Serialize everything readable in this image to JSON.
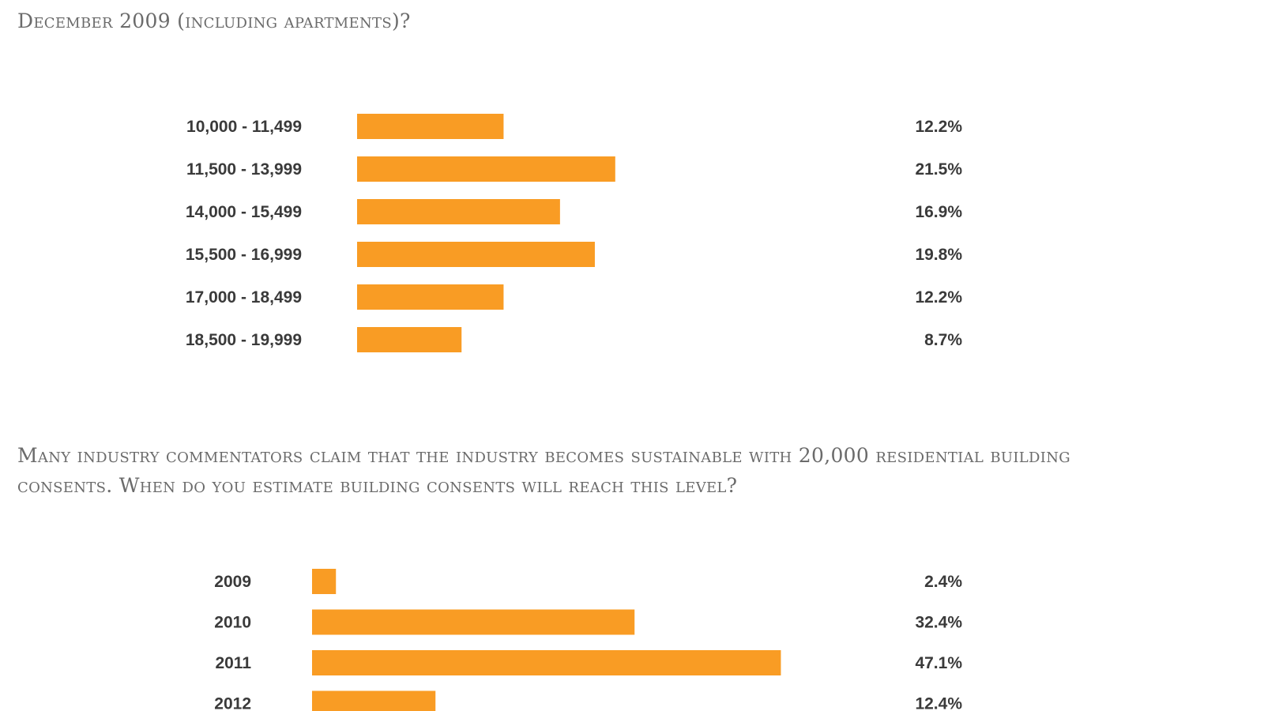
{
  "question1": {
    "title": "December 2009 (including apartments)?"
  },
  "question2": {
    "title_line1": "Many industry commentators claim that the industry becomes sustainable with 20,000 residential building",
    "title_line2": "consents. When do you estimate building consents will reach this level?"
  },
  "colors": {
    "bar": "#f99c24",
    "label": "#3a3a3a",
    "title": "#6b6b6b"
  },
  "chart_data": [
    {
      "type": "bar",
      "orientation": "horizontal",
      "categories": [
        "10,000 - 11,499",
        "11,500 - 13,999",
        "14,000 - 15,499",
        "15,500 - 16,999",
        "17,000 - 18,499",
        "18,500 - 19,999"
      ],
      "values": [
        12.2,
        21.5,
        16.9,
        19.8,
        12.2,
        8.7
      ],
      "value_labels": [
        "12.2%",
        "21.5%",
        "16.9%",
        "19.8%",
        "12.2%",
        "8.7%"
      ],
      "unit": "%",
      "title": "",
      "xlabel": "",
      "ylabel": "",
      "grid": false
    },
    {
      "type": "bar",
      "orientation": "horizontal",
      "categories": [
        "2009",
        "2010",
        "2011",
        "2012"
      ],
      "values": [
        2.4,
        32.4,
        47.1,
        12.4
      ],
      "value_labels": [
        "2.4%",
        "32.4%",
        "47.1%",
        "12.4%"
      ],
      "unit": "%",
      "title": "",
      "xlabel": "",
      "ylabel": "",
      "grid": false
    }
  ]
}
